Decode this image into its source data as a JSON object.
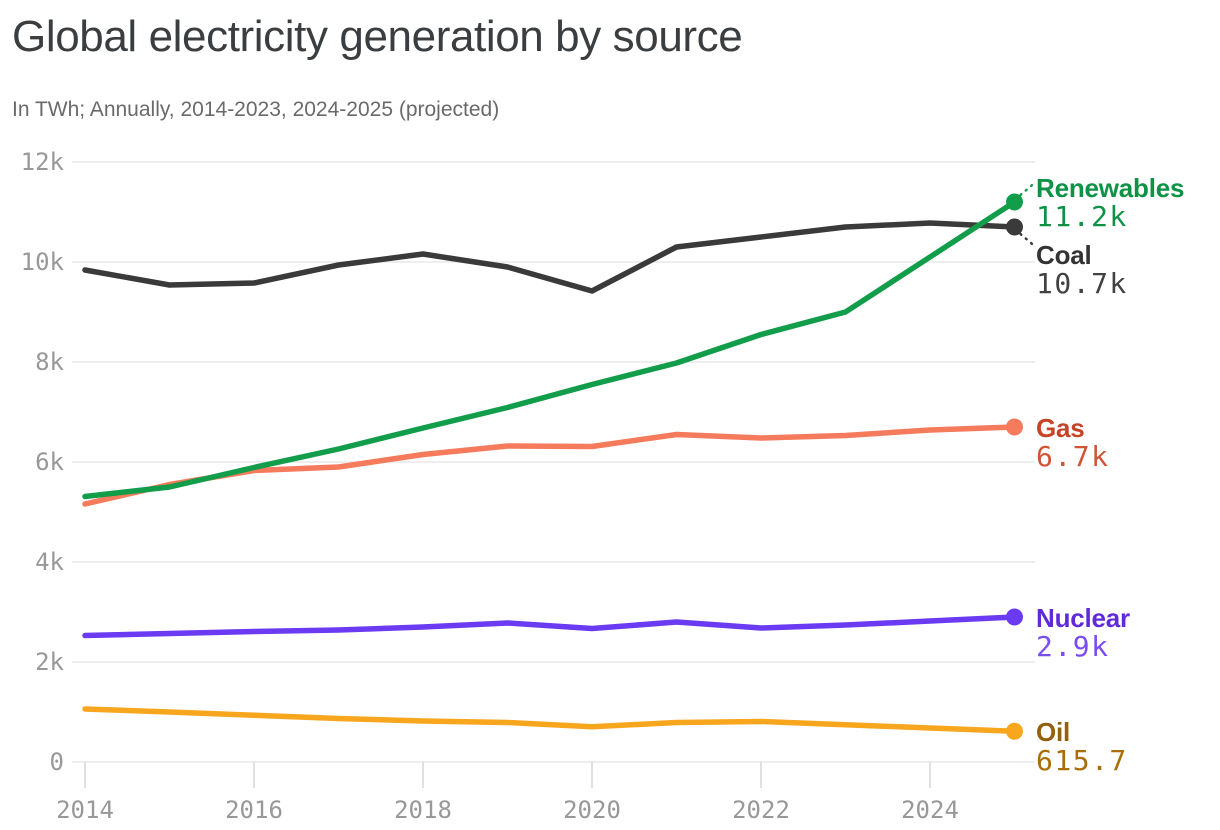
{
  "header": {
    "title": "Global electricity generation by source",
    "subtitle": "In TWh; Annually, 2014-2023, 2024-2025 (projected)"
  },
  "chart_data": {
    "type": "line",
    "title": "Global electricity generation by source",
    "subtitle": "In TWh; Annually, 2014-2023, 2024-2025 (projected)",
    "unit": "TWh",
    "x": [
      2014,
      2015,
      2016,
      2017,
      2018,
      2019,
      2020,
      2021,
      2022,
      2023,
      2024,
      2025
    ],
    "x_ticks": [
      2014,
      2016,
      2018,
      2020,
      2022,
      2024
    ],
    "y_ticks": [
      {
        "value": 0,
        "label": "0"
      },
      {
        "value": 2000,
        "label": "2k"
      },
      {
        "value": 4000,
        "label": "4k"
      },
      {
        "value": 6000,
        "label": "6k"
      },
      {
        "value": 8000,
        "label": "8k"
      },
      {
        "value": 10000,
        "label": "10k"
      },
      {
        "value": 12000,
        "label": "12k"
      }
    ],
    "ylim": [
      0,
      12000
    ],
    "grid": "horizontal",
    "legend_position": "end-of-line-labels-right",
    "series": [
      {
        "name": "Renewables",
        "value_label": "11.2k",
        "values": [
          5310,
          5500,
          5890,
          6260,
          6680,
          7090,
          7550,
          7980,
          8550,
          9000,
          10100,
          11200
        ],
        "line_color": "#129d4b",
        "name_color": "#0d9246",
        "value_color": "#0d9246",
        "leader": "up",
        "label_dy": -28
      },
      {
        "name": "Coal",
        "value_label": "10.7k",
        "values": [
          9840,
          9540,
          9580,
          9940,
          10160,
          9900,
          9420,
          10300,
          10500,
          10700,
          10780,
          10700
        ],
        "line_color": "#3a3a3a",
        "name_color": "#333333",
        "value_color": "#424242",
        "leader": "down",
        "label_dy": 14
      },
      {
        "name": "Gas",
        "value_label": "6.7k",
        "values": [
          5160,
          5550,
          5830,
          5900,
          6150,
          6320,
          6310,
          6550,
          6480,
          6530,
          6640,
          6700
        ],
        "line_color": "#f67a5c",
        "name_color": "#c54327",
        "value_color": "#d05535",
        "leader": null,
        "label_dy": -13
      },
      {
        "name": "Nuclear",
        "value_label": "2.9k",
        "values": [
          2530,
          2570,
          2610,
          2640,
          2700,
          2780,
          2670,
          2800,
          2680,
          2740,
          2820,
          2900
        ],
        "line_color": "#6a3bf2",
        "name_color": "#5f2ada",
        "value_color": "#7c4cf3",
        "leader": null,
        "label_dy": -13
      },
      {
        "name": "Oil",
        "value_label": "615.7",
        "values": [
          1060,
          1000,
          935,
          870,
          820,
          790,
          705,
          790,
          810,
          745,
          680,
          615.7
        ],
        "line_color": "#f7a61d",
        "name_color": "#92600e",
        "value_color": "#a96e08",
        "leader": null,
        "label_dy": -13
      }
    ]
  }
}
